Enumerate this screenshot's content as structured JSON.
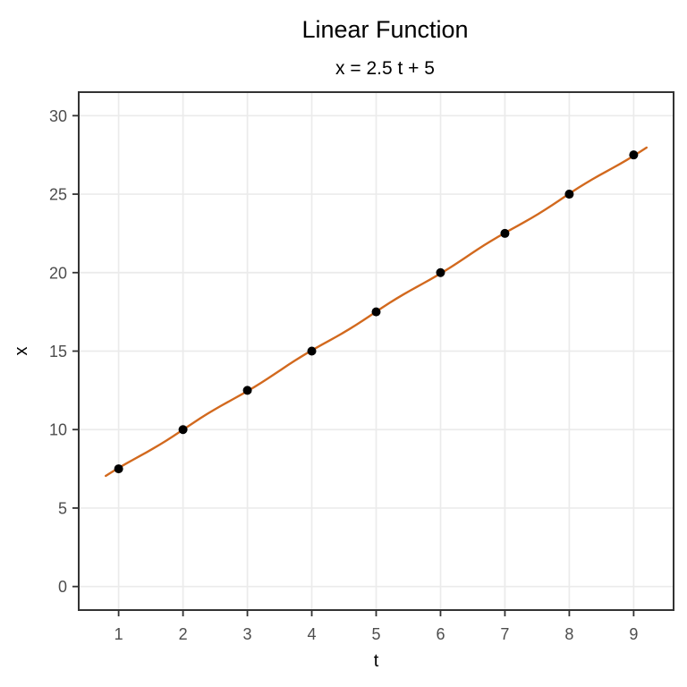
{
  "chart_data": {
    "type": "line",
    "title": "Linear Function",
    "subtitle": "x = 2.5 t + 5",
    "xlabel": "t",
    "ylabel": "x",
    "equation": {
      "slope": 2.5,
      "intercept": 5
    },
    "x": [
      1,
      2,
      3,
      4,
      5,
      6,
      7,
      8,
      9
    ],
    "y": [
      7.5,
      10,
      12.5,
      15,
      17.5,
      20,
      22.5,
      25,
      27.5
    ],
    "line_t_start": 0.8,
    "line_t_end": 9.2,
    "x_ticks": [
      1,
      2,
      3,
      4,
      5,
      6,
      7,
      8,
      9
    ],
    "y_ticks": [
      0,
      5,
      10,
      15,
      20,
      25,
      30
    ],
    "xlim": [
      0.38,
      9.62
    ],
    "ylim": [
      -1.5,
      31.5
    ],
    "grid": true,
    "legend": "none",
    "colors": {
      "line": "#D2691E",
      "point": "#000000",
      "grid": "#EBEBEB",
      "panel_border": "#333333",
      "tick_mark": "#333333",
      "tick_label": "#4D4D4D",
      "background": "#FFFFFF"
    }
  }
}
